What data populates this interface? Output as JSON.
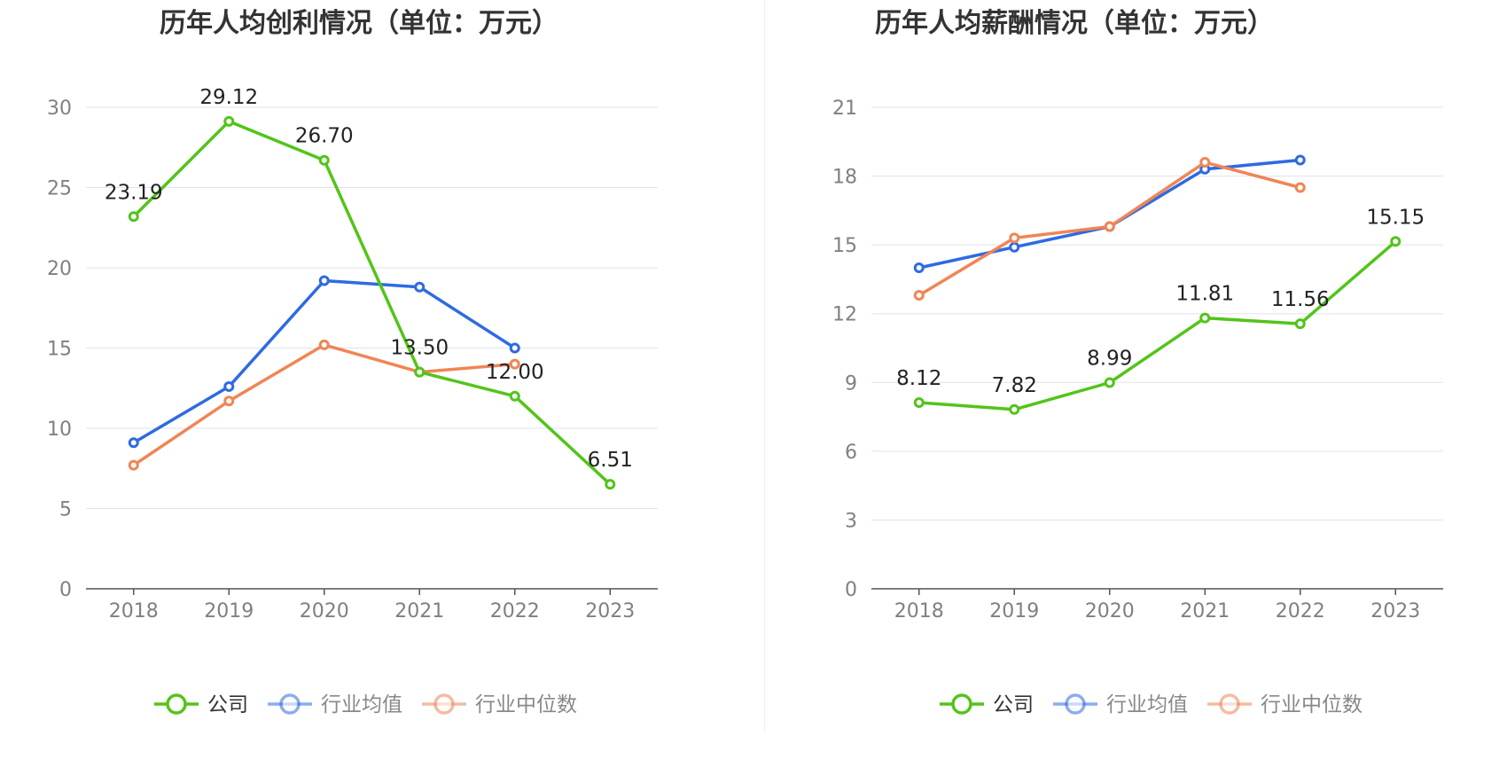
{
  "colors": {
    "company": "#52c41a",
    "avg": "#2e6be0",
    "median": "#f08555",
    "grid": "#dfe3f0",
    "axis": "#555555"
  },
  "legend": [
    {
      "key": "company",
      "label": "公司",
      "color": "#52c41a",
      "active": true
    },
    {
      "key": "avg",
      "label": "行业均值",
      "color": "#2e6be0",
      "active": false
    },
    {
      "key": "median",
      "label": "行业中位数",
      "color": "#f08555",
      "active": false
    }
  ],
  "chart_data": [
    {
      "type": "line",
      "title": "历年人均创利情况（单位：万元）",
      "categories": [
        "2018",
        "2019",
        "2020",
        "2021",
        "2022",
        "2023"
      ],
      "ylim": [
        0,
        30
      ],
      "yticks": [
        "0",
        "5",
        "10",
        "15",
        "20",
        "25",
        "30"
      ],
      "grid": true,
      "legend_position": "bottom",
      "series": [
        {
          "name": "公司",
          "color": "#52c41a",
          "values": [
            23.19,
            29.12,
            26.7,
            13.5,
            12.0,
            6.51
          ],
          "labels": [
            "23.19",
            "29.12",
            "26.70",
            "13.50",
            "12.00",
            "6.51"
          ]
        },
        {
          "name": "行业均值",
          "color": "#2e6be0",
          "values": [
            9.1,
            12.6,
            19.2,
            18.8,
            15.0,
            null
          ]
        },
        {
          "name": "行业中位数",
          "color": "#f08555",
          "values": [
            7.7,
            11.7,
            15.2,
            13.5,
            14.0,
            null
          ]
        }
      ]
    },
    {
      "type": "line",
      "title": "历年人均薪酬情况（单位：万元）",
      "categories": [
        "2018",
        "2019",
        "2020",
        "2021",
        "2022",
        "2023"
      ],
      "ylim": [
        0,
        21
      ],
      "yticks": [
        "0",
        "3",
        "6",
        "9",
        "12",
        "15",
        "18",
        "21"
      ],
      "grid": true,
      "legend_position": "bottom",
      "series": [
        {
          "name": "公司",
          "color": "#52c41a",
          "values": [
            8.12,
            7.82,
            8.99,
            11.81,
            11.56,
            15.15
          ],
          "labels": [
            "8.12",
            "7.82",
            "8.99",
            "11.81",
            "11.56",
            "15.15"
          ]
        },
        {
          "name": "行业均值",
          "color": "#2e6be0",
          "values": [
            14.0,
            14.9,
            15.8,
            18.3,
            18.7,
            null
          ]
        },
        {
          "name": "行业中位数",
          "color": "#f08555",
          "values": [
            12.8,
            15.3,
            15.8,
            18.6,
            17.5,
            null
          ]
        }
      ]
    }
  ]
}
